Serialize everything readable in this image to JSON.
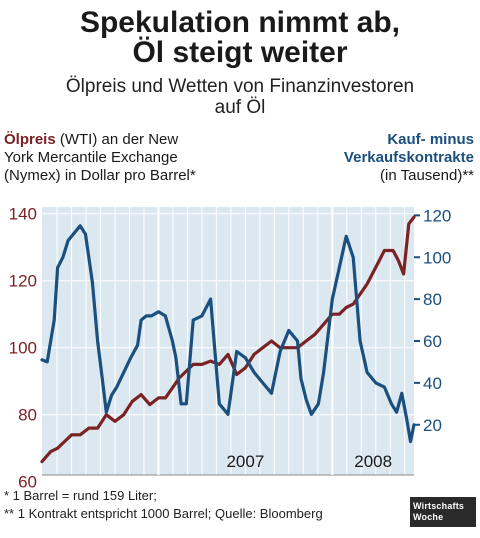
{
  "header": {
    "title_line1": "Spekulation nimmt ab,",
    "title_line2": "Öl steigt weiter",
    "subtitle_line1": "Ölpreis und Wetten von Finanzinvestoren",
    "subtitle_line2": "auf Öl"
  },
  "left_axis_label": {
    "bold": "Ölpreis",
    "rest1": " (WTI) an der New",
    "line2": "York Mercantile Exchange",
    "line3": "(Nymex) in Dollar pro Barrel*"
  },
  "right_axis_label": {
    "line1": "Kauf- minus",
    "line2": "Verkaufskontrakte",
    "line3": "(in Tausend)**"
  },
  "footnotes": {
    "note1": "* 1 Barrel = rund 159 Liter;",
    "note2": "** 1 Kontrakt entspricht 1000 Barrel; Quelle: Bloomberg"
  },
  "logo": {
    "line1": "Wirtschafts",
    "line2": "Woche"
  },
  "colors": {
    "oil": "#7a2325",
    "contracts": "#1a4f7e",
    "plot_bg": "#dce8f0",
    "grid": "#ffffff"
  },
  "chart_data": {
    "type": "line",
    "x_unit": "year (decimal)",
    "x_ticks": [
      "2007",
      "2008"
    ],
    "xlim": [
      2006.33,
      2008.47
    ],
    "left_axis": {
      "ylim": [
        62,
        142
      ],
      "ticks": [
        "140",
        "120",
        "100",
        "80",
        "60"
      ]
    },
    "right_axis": {
      "ylim": [
        -4,
        124
      ],
      "ticks": [
        "120",
        "100",
        "80",
        "60",
        "40",
        "20"
      ]
    },
    "series": [
      {
        "axis": "left",
        "x": [
          2006.33,
          2006.38,
          2006.42,
          2006.46,
          2006.5,
          2006.55,
          2006.6,
          2006.65,
          2006.7,
          2006.75,
          2006.8,
          2006.85,
          2006.9,
          2006.95,
          2007.0,
          2007.04,
          2007.08,
          2007.12,
          2007.16,
          2007.2,
          2007.25,
          2007.3,
          2007.35,
          2007.4,
          2007.45,
          2007.5,
          2007.55,
          2007.6,
          2007.65,
          2007.7,
          2007.75,
          2007.8,
          2007.85,
          2007.9,
          2007.95,
          2008.0,
          2008.04,
          2008.08,
          2008.12,
          2008.16,
          2008.2,
          2008.25,
          2008.3,
          2008.35,
          2008.38,
          2008.41,
          2008.44,
          2008.47
        ],
        "y": [
          66,
          69,
          70,
          72,
          74,
          74,
          76,
          76,
          80,
          78,
          80,
          84,
          86,
          83,
          85,
          85,
          88,
          91,
          93,
          95,
          95,
          96,
          95,
          98,
          92,
          94,
          98,
          100,
          102,
          100,
          100,
          100,
          102,
          104,
          107,
          110,
          110,
          112,
          113,
          116,
          119,
          124,
          129,
          129,
          126,
          122,
          137,
          139
        ]
      },
      {
        "axis": "right",
        "x": [
          2006.33,
          2006.36,
          2006.4,
          2006.42,
          2006.45,
          2006.48,
          2006.52,
          2006.55,
          2006.58,
          2006.62,
          2006.65,
          2006.68,
          2006.7,
          2006.73,
          2006.76,
          2006.8,
          2006.84,
          2006.88,
          2006.9,
          2006.93,
          2006.96,
          2007.0,
          2007.04,
          2007.08,
          2007.1,
          2007.13,
          2007.16,
          2007.2,
          2007.25,
          2007.3,
          2007.35,
          2007.4,
          2007.45,
          2007.5,
          2007.55,
          2007.6,
          2007.65,
          2007.7,
          2007.75,
          2007.8,
          2007.82,
          2007.85,
          2007.88,
          2007.92,
          2007.95,
          2008.0,
          2008.04,
          2008.08,
          2008.12,
          2008.16,
          2008.2,
          2008.25,
          2008.3,
          2008.34,
          2008.37,
          2008.4,
          2008.43,
          2008.45,
          2008.47
        ],
        "y": [
          51,
          50,
          70,
          95,
          100,
          108,
          112,
          115,
          111,
          88,
          60,
          40,
          26,
          34,
          38,
          45,
          52,
          58,
          70,
          72,
          72,
          74,
          72,
          60,
          52,
          30,
          30,
          70,
          72,
          80,
          30,
          25,
          55,
          52,
          45,
          40,
          35,
          55,
          65,
          60,
          42,
          32,
          25,
          30,
          45,
          80,
          95,
          110,
          100,
          60,
          45,
          40,
          38,
          30,
          26,
          35,
          22,
          12,
          20
        ]
      }
    ]
  }
}
